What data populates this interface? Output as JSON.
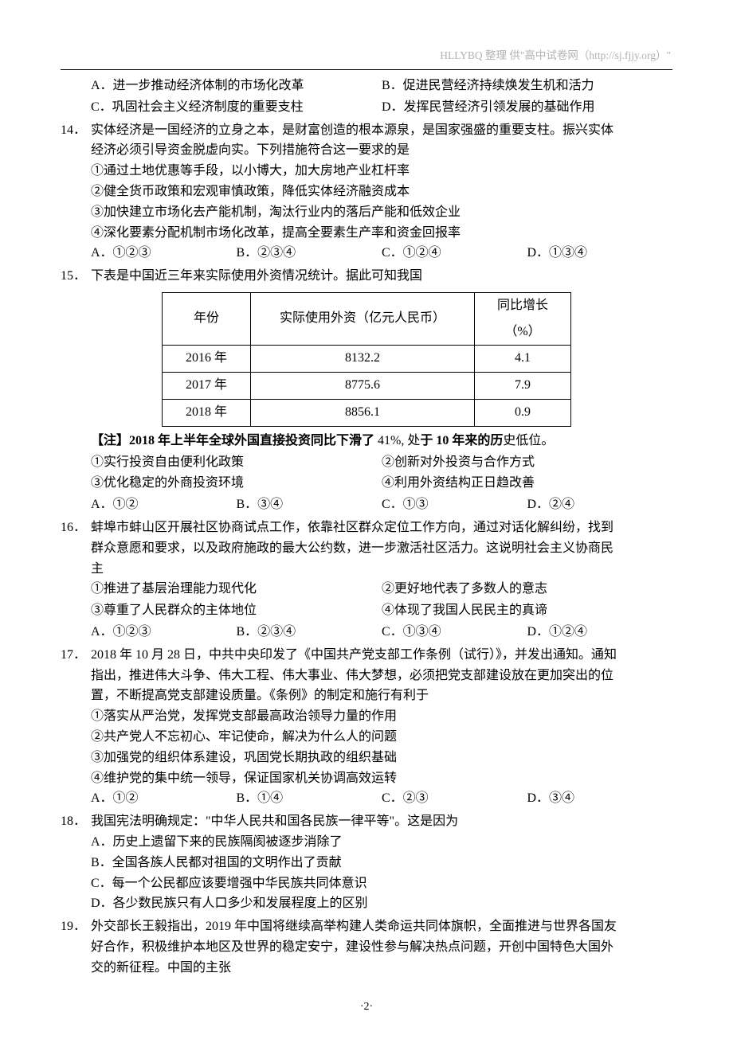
{
  "header": "HLLYBQ 整理    供\"高中试卷网（http://sj.fjjy.org）\"",
  "q13": {
    "optA": "A．进一步推动经济体制的市场化改革",
    "optB": "B．促进民营经济持续焕发生机和活力",
    "optC": "C．巩固社会主义经济制度的重要支柱",
    "optD": "D．发挥民营经济引领发展的基础作用"
  },
  "q14": {
    "num": "14．",
    "stem1": "实体经济是一国经济的立身之本，是财富创造的根本源泉，是国家强盛的重要支柱。振兴实体",
    "stem2": "经济必须引导资金脱虚向实。下列措施符合这一要求的是",
    "s1": "①通过土地优惠等手段，以小博大，加大房地产业杠杆率",
    "s2": "②健全货币政策和宏观审慎政策，降低实体经济融资成本",
    "s3": "③加快建立市场化去产能机制，淘汰行业内的落后产能和低效企业",
    "s4": "④深化要素分配机制市场化改革，提高全要素生产率和资金回报率",
    "optA": "A．①②③",
    "optB": "B．②③④",
    "optC": "C．①②④",
    "optD": "D．①③④"
  },
  "q15": {
    "num": "15．",
    "stem": "下表是中国近三年来实际使用外资情况统计。据此可知我国",
    "table": {
      "h1": "年份",
      "h2": "实际使用外资（亿元人民币）",
      "h3a": "同比增长",
      "h3b": "（%）",
      "r1c1": "2016 年",
      "r1c2": "8132.2",
      "r1c3": "4.1",
      "r2c1": "2017 年",
      "r2c2": "8775.6",
      "r2c3": "7.9",
      "r3c1": "2018 年",
      "r3c2": "8856.1",
      "r3c3": "0.9"
    },
    "note_b1": "【注】2018 年上半年全球外国直接投资同比下滑了",
    "note_p1": " 41%, 处",
    "note_b2": "于 10 年来的历",
    "note_p2": "史低位。",
    "s1": "①实行投资自由便利化政策",
    "s2": "②创新对外投资与合作方式",
    "s3": "③优化稳定的外商投资环境",
    "s4": "④利用外资结构正日趋改善",
    "optA": "A．①②",
    "optB": "B．③④",
    "optC": "C．①③",
    "optD": "D．②④"
  },
  "q16": {
    "num": "16．",
    "stem1": "蚌埠市蚌山区开展社区协商试点工作，依靠社区群众定位工作方向，通过对话化解纠纷，找到",
    "stem2": "群众意愿和要求，以及政府施政的最大公约数，进一步激活社区活力。这说明社会主义协商民",
    "stem3": "主",
    "s1": "①推进了基层治理能力现代化",
    "s2": "②更好地代表了多数人的意志",
    "s3": "③尊重了人民群众的主体地位",
    "s4": "④体现了我国人民民主的真谛",
    "optA": "A．①②③",
    "optB": "B．②③④",
    "optC": "C．①③④",
    "optD": "D．①②④"
  },
  "q17": {
    "num": "17．",
    "stem1": "2018 年 10 月 28 日，中共中央印发了《中国共产党支部工作条例（试行）》，并发出通知。通知",
    "stem2": "指出，推进伟大斗争、伟大工程、伟大事业、伟大梦想，必须把党支部建设放在更加突出的位",
    "stem3": "置，不断提高党支部建设质量。《条例》的制定和施行有利于",
    "s1": "①落实从严治党，发挥党支部最高政治领导力量的作用",
    "s2": "②共产党人不忘初心、牢记使命，解决为什么人的问题",
    "s3": "③加强党的组织体系建设，巩固党长期执政的组织基础",
    "s4": "④维护党的集中统一领导，保证国家机关协调高效运转",
    "optA": "A．①②",
    "optB": "B．①④",
    "optC": "C．②③",
    "optD": "D．③④"
  },
  "q18": {
    "num": "18．",
    "stem": "我国宪法明确规定：\"中华人民共和国各民族一律平等\"。这是因为",
    "optA": "A．历史上遗留下来的民族隔阂被逐步消除了",
    "optB": "B．全国各族人民都对祖国的文明作出了贡献",
    "optC": "C．每一个公民都应该要增强中华民族共同体意识",
    "optD": "D．各少数民族只有人口多少和发展程度上的区别"
  },
  "q19": {
    "num": "19．",
    "stem1": "外交部长王毅指出，2019 年中国将继续高举构建人类命运共同体旗帜，全面推进与世界各国友",
    "stem2": "好合作，积极维护本地区及世界的稳定安宁，建设性参与解决热点问题，开创中国特色大国外",
    "stem3": "交的新征程。中国的主张"
  },
  "footer": "·2·"
}
